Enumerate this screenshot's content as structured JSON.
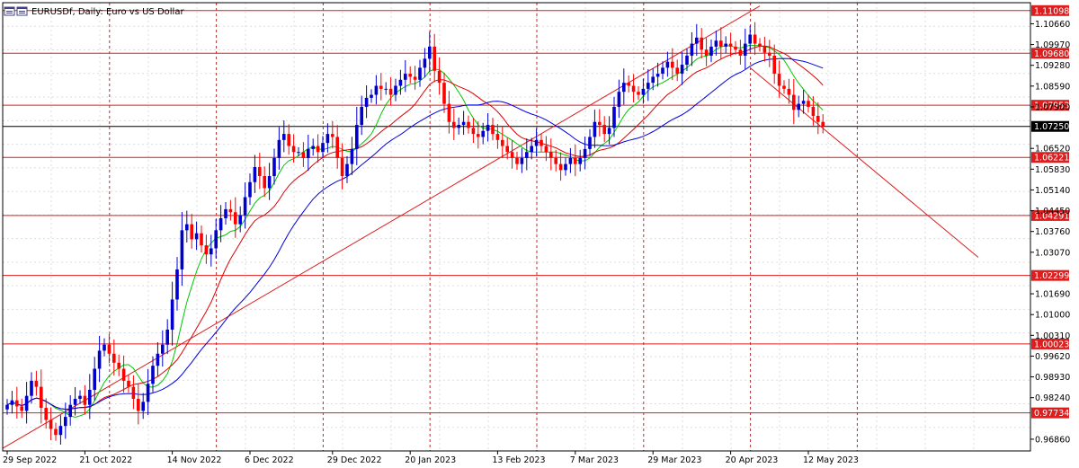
{
  "window": {
    "title_label": "EURUSDf, Daily:  Euro vs US Dollar"
  },
  "chart_data": {
    "type": "candlestick",
    "symbol": "EURUSDf",
    "timeframe": "Daily",
    "description": "Euro vs US Dollar",
    "ylim": [
      0.9647,
      1.1136
    ],
    "y_ticks": [
      "1.10660",
      "1.09970",
      "1.09280",
      "1.08590",
      "1.07900",
      "1.06520",
      "1.05830",
      "1.05140",
      "1.04450",
      "1.03760",
      "1.03070",
      "1.01690",
      "1.01000",
      "1.00310",
      "0.99620",
      "0.98930",
      "0.98240",
      "0.96860"
    ],
    "x_ticks": [
      {
        "i": 0,
        "label": "29 Sep 2022"
      },
      {
        "i": 16,
        "label": "21 Oct 2022"
      },
      {
        "i": 34,
        "label": "14 Nov 2022"
      },
      {
        "i": 50,
        "label": "6 Dec 2022"
      },
      {
        "i": 67,
        "label": "29 Dec 2022"
      },
      {
        "i": 83,
        "label": "20 Jan 2023"
      },
      {
        "i": 101,
        "label": "13 Feb 2023"
      },
      {
        "i": 117,
        "label": "7 Mar 2023"
      },
      {
        "i": 133,
        "label": "29 Mar 2023"
      },
      {
        "i": 149,
        "label": "20 Apr 2023"
      },
      {
        "i": 165,
        "label": "12 May 2023"
      }
    ],
    "period_separators": [
      0,
      22,
      44,
      66,
      88,
      110,
      132,
      154,
      176
    ],
    "horizontal_levels": [
      {
        "value": 1.11098,
        "label": "1.11098"
      },
      {
        "value": 1.0968,
        "label": "1.09680"
      },
      {
        "value": 1.07953,
        "label": "1.07953"
      },
      {
        "value": 1.06221,
        "label": "1.06221"
      },
      {
        "value": 1.04291,
        "label": "1.04291"
      },
      {
        "value": 1.02299,
        "label": "1.02299"
      },
      {
        "value": 1.00023,
        "label": "1.00023"
      },
      {
        "value": 0.97734,
        "label": "0.97734"
      }
    ],
    "current_price": {
      "value": 1.0725,
      "label": "1.07250"
    },
    "trendlines": [
      {
        "i1": -1,
        "v1": 0.9655,
        "i2": 155,
        "v2": 1.1125
      },
      {
        "i1": 153,
        "v1": 1.092,
        "i2": 200,
        "v2": 1.029
      }
    ],
    "closes": [
      0.98,
      0.9815,
      0.9795,
      0.978,
      0.983,
      0.988,
      0.986,
      0.979,
      0.975,
      0.972,
      0.97,
      0.973,
      0.976,
      0.98,
      0.982,
      0.983,
      0.98,
      0.985,
      0.992,
      0.998,
      1.0,
      0.997,
      0.994,
      0.992,
      0.988,
      0.986,
      0.982,
      0.978,
      0.981,
      0.987,
      0.993,
      0.997,
      1.0,
      1.005,
      1.015,
      1.025,
      1.038,
      1.04,
      1.035,
      1.037,
      1.033,
      1.03,
      1.032,
      1.038,
      1.042,
      1.045,
      1.044,
      1.04,
      1.043,
      1.049,
      1.054,
      1.059,
      1.056,
      1.052,
      1.056,
      1.062,
      1.068,
      1.07,
      1.066,
      1.064,
      1.064,
      1.062,
      1.065,
      1.066,
      1.064,
      1.067,
      1.07,
      1.069,
      1.062,
      1.056,
      1.06,
      1.065,
      1.073,
      1.079,
      1.082,
      1.083,
      1.086,
      1.085,
      1.085,
      1.083,
      1.086,
      1.088,
      1.09,
      1.089,
      1.088,
      1.092,
      1.095,
      1.099,
      1.091,
      1.087,
      1.08,
      1.074,
      1.072,
      1.073,
      1.074,
      1.072,
      1.07,
      1.069,
      1.071,
      1.073,
      1.07,
      1.068,
      1.066,
      1.064,
      1.062,
      1.06,
      1.062,
      1.064,
      1.066,
      1.068,
      1.066,
      1.064,
      1.062,
      1.06,
      1.058,
      1.06,
      1.062,
      1.06,
      1.062,
      1.065,
      1.069,
      1.074,
      1.073,
      1.07,
      1.072,
      1.079,
      1.084,
      1.087,
      1.086,
      1.084,
      1.083,
      1.085,
      1.087,
      1.089,
      1.09,
      1.092,
      1.094,
      1.092,
      1.09,
      1.093,
      1.096,
      1.1,
      1.102,
      1.098,
      1.096,
      1.099,
      1.101,
      1.099,
      1.1,
      1.099,
      1.098,
      1.096,
      1.1,
      1.103,
      1.1,
      1.099,
      1.097,
      1.096,
      1.09,
      1.086,
      1.085,
      1.083,
      1.078,
      1.08,
      1.081,
      1.079,
      1.076,
      1.074,
      1.0725
    ],
    "colors": {
      "bull": "#0000cc",
      "bear": "#ff0000",
      "ma_fast": "#00c800",
      "ma_mid": "#e00000",
      "ma_slow": "#0000e0",
      "level_line": "#dc1e1e",
      "current_line": "#000000",
      "grid": "#dddddd",
      "separator": "#dc1e1e"
    }
  }
}
